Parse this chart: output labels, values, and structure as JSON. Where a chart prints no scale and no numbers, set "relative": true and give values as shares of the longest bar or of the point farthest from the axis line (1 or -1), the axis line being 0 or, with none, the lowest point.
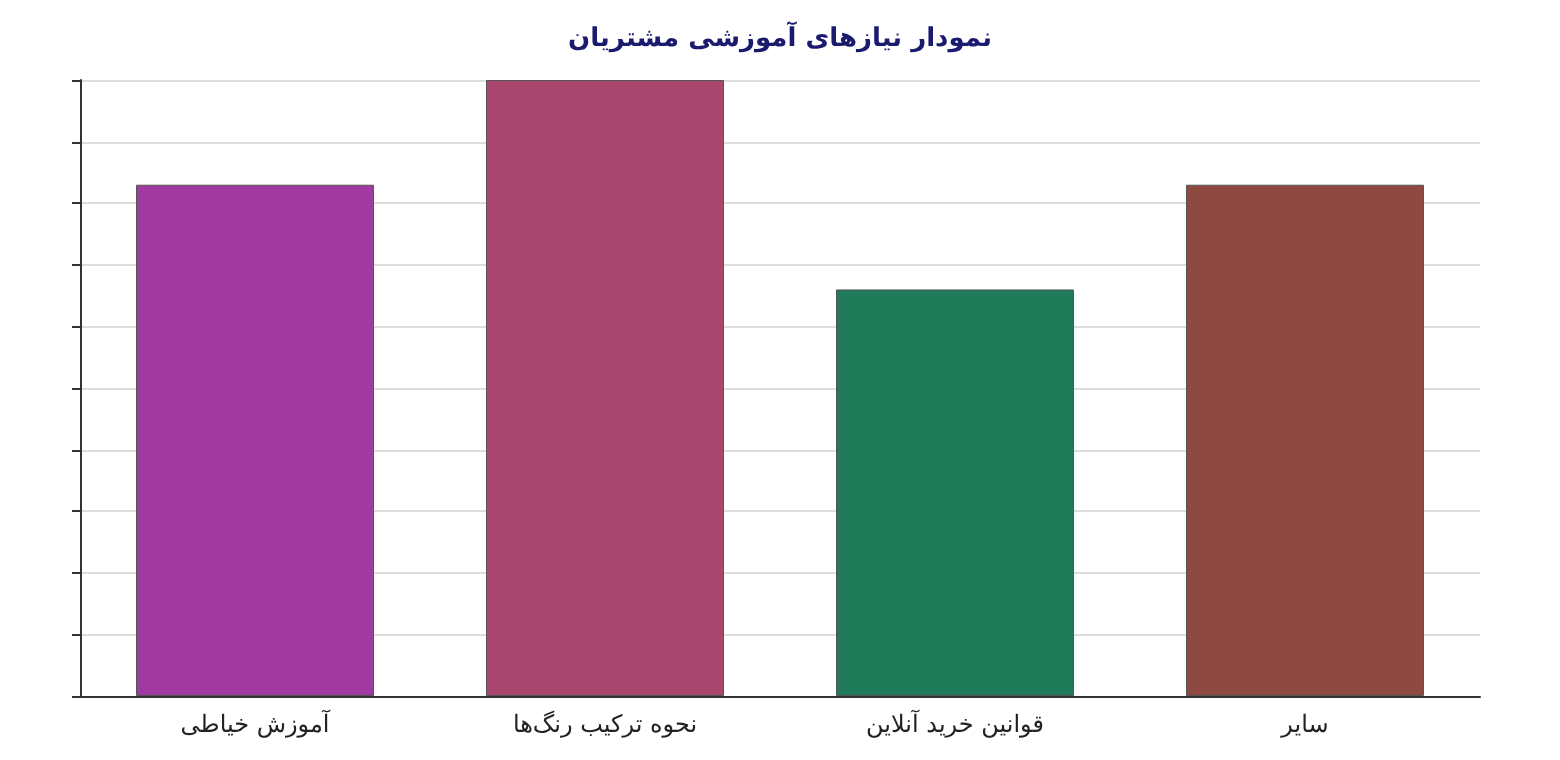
{
  "chart_data": {
    "type": "bar",
    "title": "نمودار نیازهای آموزشی مشتریان",
    "categories": [
      "آموزش خیاطی",
      "نحوه ترکیب رنگ‌ها",
      "قوانین خرید آنلاین",
      "سایر"
    ],
    "values": [
      0.83,
      1,
      0.66,
      0.83
    ],
    "colors": [
      "#a03aa0",
      "#a8466e",
      "#1f7a5a",
      "#8e4a40"
    ],
    "relative": true,
    "grid": "y"
  }
}
